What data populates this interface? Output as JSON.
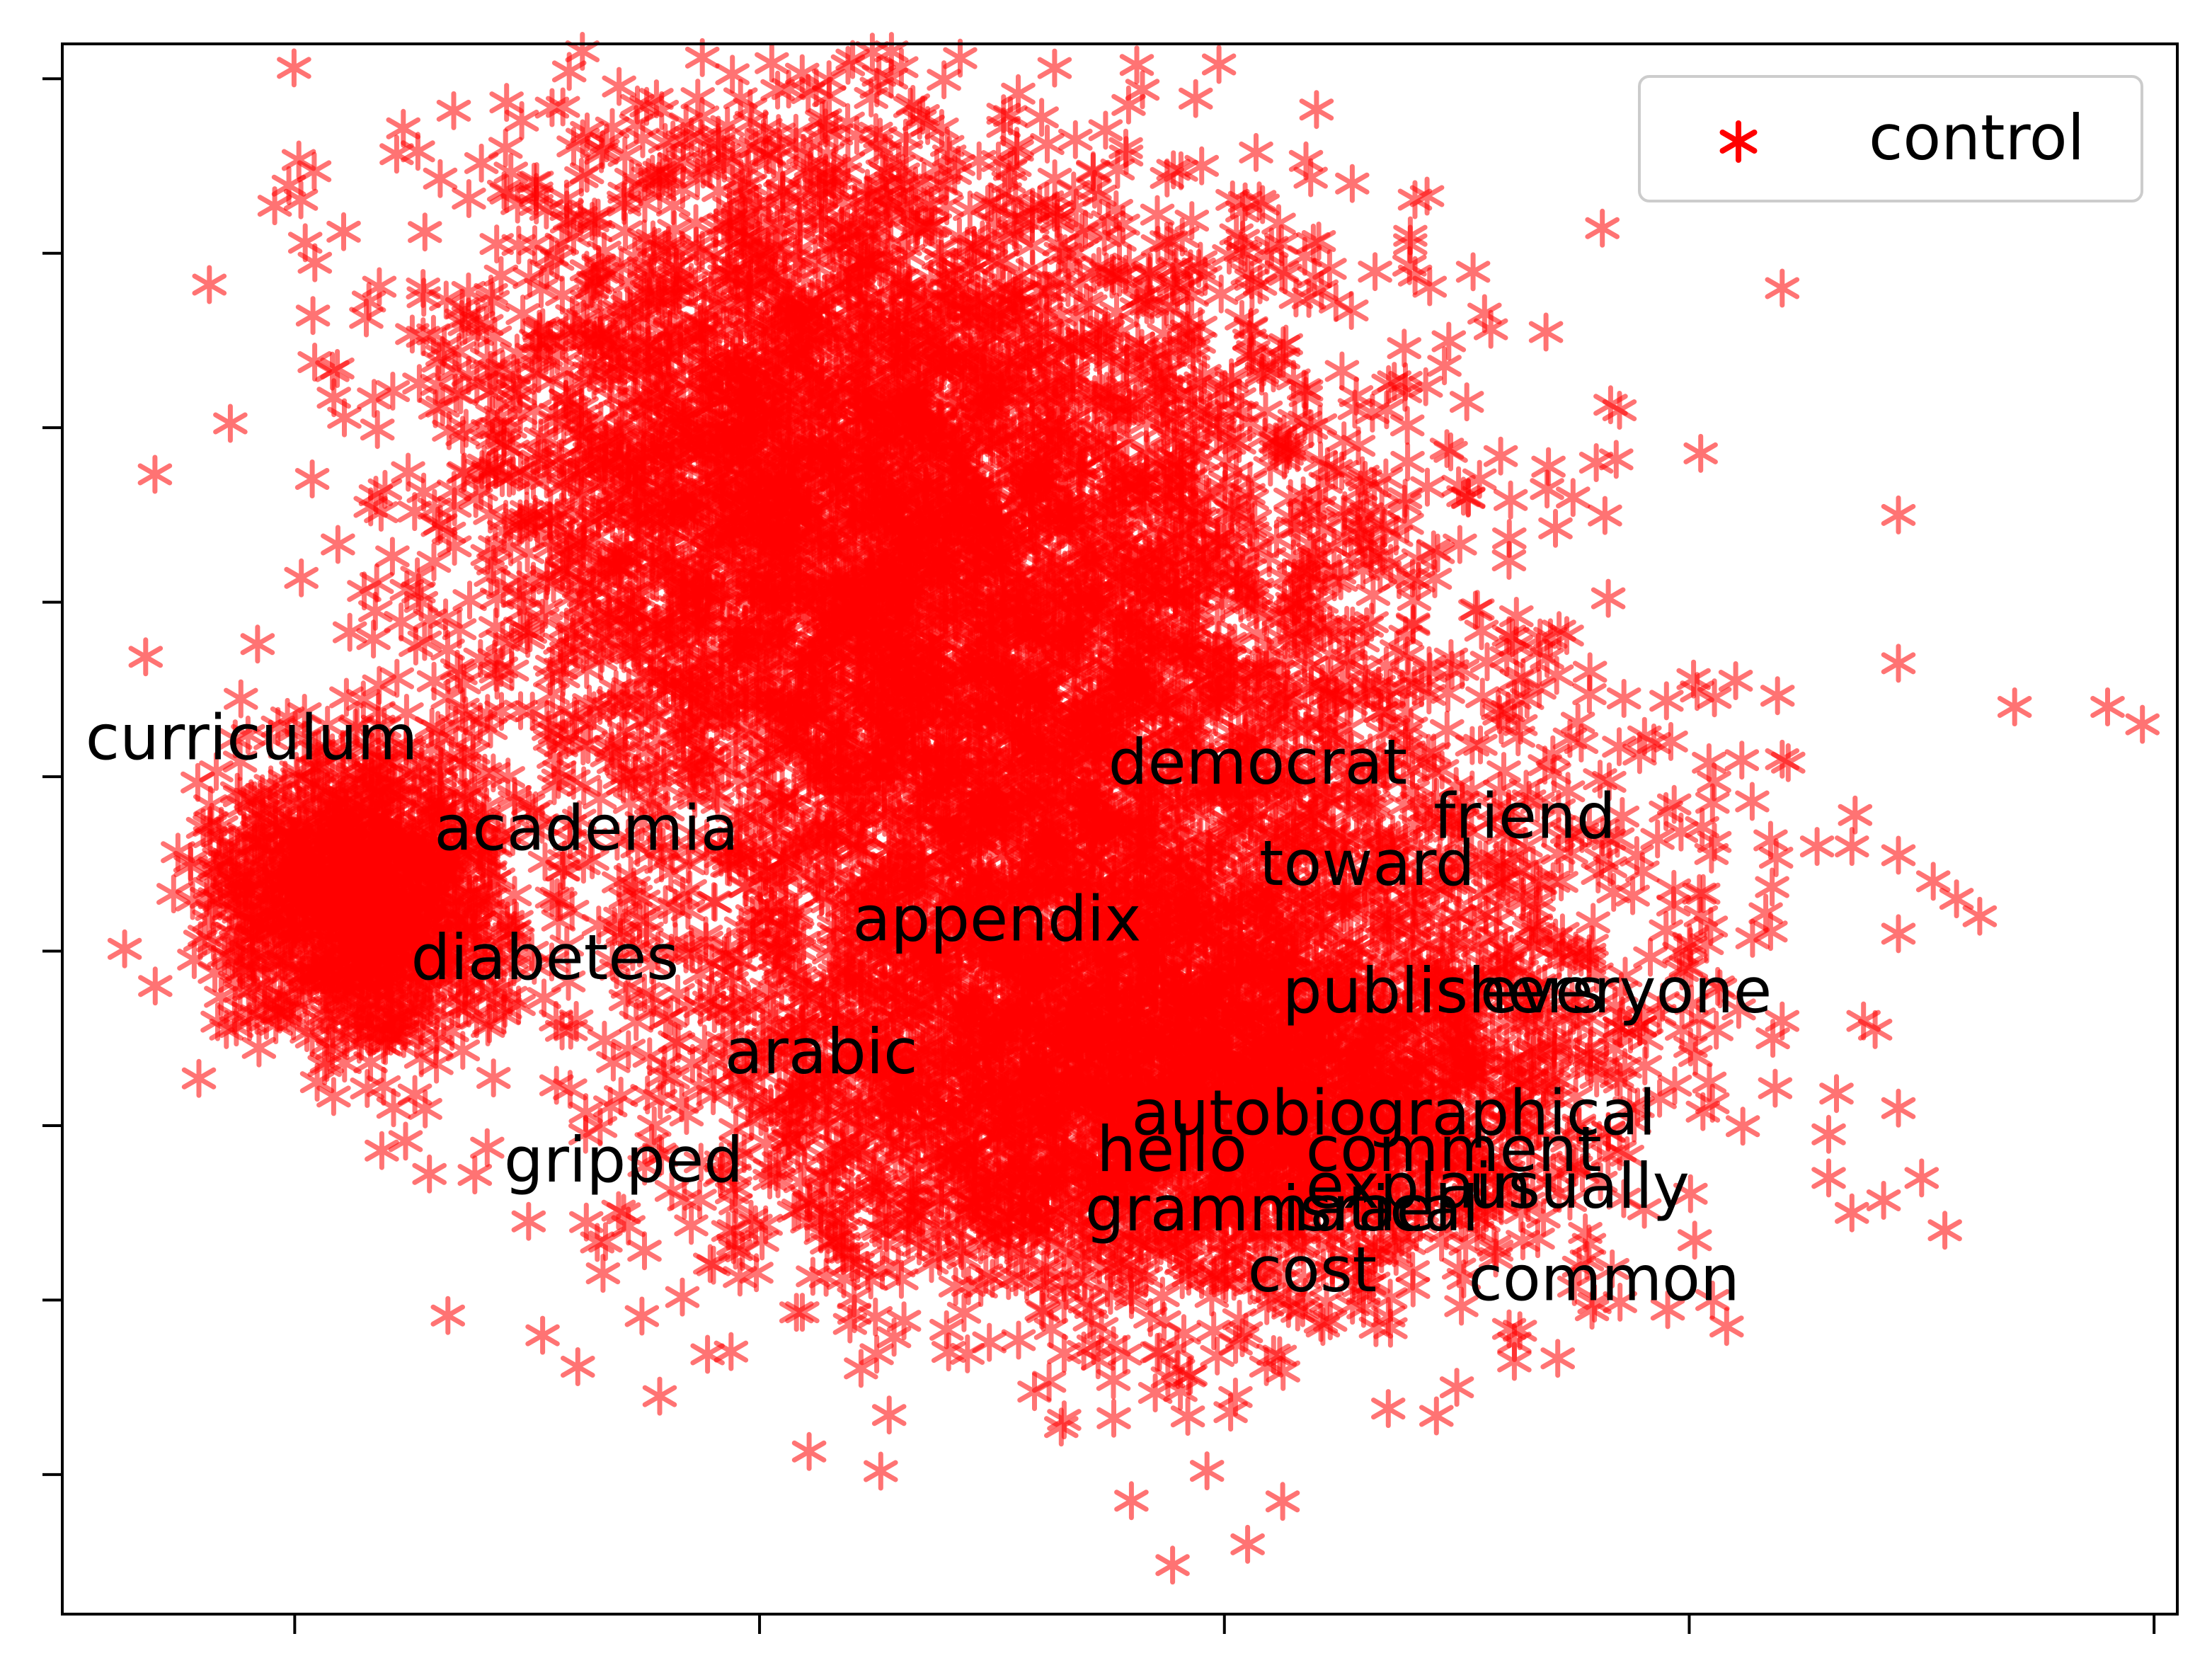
{
  "chart_data": {
    "type": "scatter",
    "title": "",
    "xlabel": "",
    "ylabel": "",
    "xlim": [
      -4.5,
      4.6
    ],
    "ylim": [
      -4.3,
      4.7
    ],
    "grid": false,
    "x_ticks": [
      -3.5,
      -1.5,
      0.5,
      2.5,
      4.5
    ],
    "y_ticks": [
      -3.5,
      -2.5,
      -1.5,
      -0.5,
      0.5,
      1.5,
      2.5,
      3.5,
      4.5
    ],
    "tick_labels_shown": false,
    "legend": {
      "position": "top-right",
      "entries": [
        {
          "label": "control",
          "color": "#ff0000",
          "marker": "*"
        }
      ]
    },
    "series": [
      {
        "name": "control",
        "color": "#ff0000",
        "marker": "*",
        "alpha": 0.55,
        "clusters": [
          {
            "center": [
              -1.2,
              2.2
            ],
            "spread": [
              0.85,
              1.05
            ],
            "count": 3400
          },
          {
            "center": [
              -0.2,
              0.0
            ],
            "spread": [
              0.9,
              1.1
            ],
            "count": 3000
          },
          {
            "center": [
              0.1,
              -1.4
            ],
            "spread": [
              0.9,
              0.6
            ],
            "count": 1800
          },
          {
            "center": [
              0.9,
              -1.3
            ],
            "spread": [
              0.55,
              0.4
            ],
            "count": 500
          },
          {
            "center": [
              -3.2,
              -0.2
            ],
            "spread": [
              0.32,
              0.42
            ],
            "count": 1200
          },
          {
            "center": [
              1.6,
              -0.5
            ],
            "spread": [
              0.6,
              0.9
            ],
            "count": 350
          },
          {
            "center": [
              0.3,
              2.0
            ],
            "spread": [
              0.7,
              1.0
            ],
            "count": 500
          }
        ],
        "points": [
          {
            "x": -4.1,
            "y": -0.7
          },
          {
            "x": 2.2,
            "y": 2.6
          },
          {
            "x": 2.9,
            "y": 3.3
          },
          {
            "x": 1.3,
            "y": 3.6
          },
          {
            "x": 1.55,
            "y": 2.1
          },
          {
            "x": 1.4,
            "y": 1.8
          },
          {
            "x": 2.0,
            "y": 2.1
          },
          {
            "x": 2.1,
            "y": 2.3
          },
          {
            "x": 3.4,
            "y": 2.0
          },
          {
            "x": 3.4,
            "y": 1.15
          },
          {
            "x": 3.9,
            "y": 0.9
          },
          {
            "x": 4.3,
            "y": 0.9
          },
          {
            "x": 4.45,
            "y": 0.8
          },
          {
            "x": 3.4,
            "y": 0.05
          },
          {
            "x": 2.9,
            "y": 0.6
          },
          {
            "x": 3.05,
            "y": 0.1
          },
          {
            "x": 3.55,
            "y": -0.1
          },
          {
            "x": 3.75,
            "y": -0.3
          },
          {
            "x": 3.25,
            "y": -0.9
          },
          {
            "x": 3.4,
            "y": -0.4
          },
          {
            "x": 3.65,
            "y": -0.2
          },
          {
            "x": 2.9,
            "y": -0.9
          },
          {
            "x": 3.1,
            "y": -1.55
          },
          {
            "x": 3.5,
            "y": -1.8
          },
          {
            "x": 3.1,
            "y": -1.8
          },
          {
            "x": 3.2,
            "y": -2.0
          },
          {
            "x": 3.6,
            "y": -2.1
          },
          {
            "x": 3.4,
            "y": -1.4
          },
          {
            "x": 3.3,
            "y": -0.95
          },
          {
            "x": 2.6,
            "y": -2.5
          },
          {
            "x": 1.5,
            "y": -3.0
          },
          {
            "x": 2.55,
            "y": -0.3
          },
          {
            "x": 2.4,
            "y": 0.3
          },
          {
            "x": 2.7,
            "y": 1.05
          },
          {
            "x": 3.2,
            "y": 0.1
          },
          {
            "x": -1.2,
            "y": 4.4
          },
          {
            "x": -0.45,
            "y": 4.3
          },
          {
            "x": 1.05,
            "y": 3.9
          },
          {
            "x": 0.65,
            "y": 3.8
          },
          {
            "x": 2.6,
            "y": 0.35
          },
          {
            "x": 0.1,
            "y": -3.65
          },
          {
            "x": 0.6,
            "y": -3.9
          },
          {
            "x": -2.4,
            "y": 3.0
          },
          {
            "x": -2.6,
            "y": 2.4
          }
        ]
      }
    ],
    "annotations": [
      {
        "text": "curriculum",
        "x": -4.4,
        "y": 0.6
      },
      {
        "text": "academia",
        "x": -2.9,
        "y": 0.08
      },
      {
        "text": "diabetes",
        "x": -3.0,
        "y": -0.66
      },
      {
        "text": "appendix",
        "x": -1.1,
        "y": -0.44
      },
      {
        "text": "democrat",
        "x": 0.0,
        "y": 0.46
      },
      {
        "text": "friend",
        "x": 1.4,
        "y": 0.15
      },
      {
        "text": "toward",
        "x": 0.65,
        "y": -0.12
      },
      {
        "text": "publishers",
        "x": 0.75,
        "y": -0.85
      },
      {
        "text": "everyone",
        "x": 1.6,
        "y": -0.85
      },
      {
        "text": "arabic",
        "x": -1.65,
        "y": -1.2
      },
      {
        "text": "autobiographical",
        "x": 0.1,
        "y": -1.55
      },
      {
        "text": "hello",
        "x": -0.05,
        "y": -1.76
      },
      {
        "text": "comment",
        "x": 0.85,
        "y": -1.76
      },
      {
        "text": "gripped",
        "x": -2.6,
        "y": -1.82
      },
      {
        "text": "explain",
        "x": 0.85,
        "y": -1.97
      },
      {
        "text": "usually",
        "x": 1.55,
        "y": -1.97
      },
      {
        "text": "grammatical",
        "x": -0.1,
        "y": -2.1
      },
      {
        "text": "israel",
        "x": 0.75,
        "y": -2.1
      },
      {
        "text": "cost",
        "x": 0.6,
        "y": -2.45
      },
      {
        "text": "common",
        "x": 1.55,
        "y": -2.5
      }
    ]
  }
}
